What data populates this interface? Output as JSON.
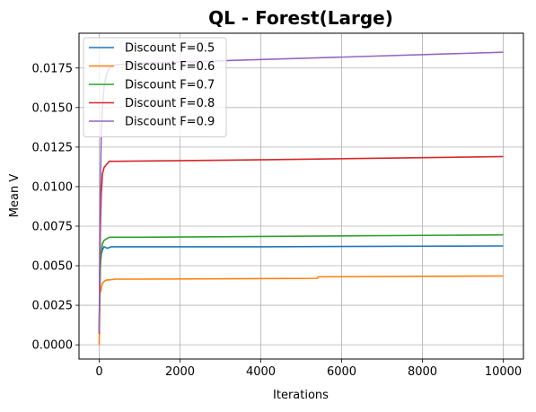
{
  "chart_data": {
    "type": "line",
    "title": "QL - Forest(Large)",
    "xlabel": "Iterations",
    "ylabel": "Mean V",
    "xlim": [
      -500,
      10500
    ],
    "ylim": [
      -0.0009,
      0.0197
    ],
    "xticks": [
      0,
      2000,
      4000,
      6000,
      8000,
      10000
    ],
    "yticks": [
      0.0,
      0.0025,
      0.005,
      0.0075,
      0.01,
      0.0125,
      0.015,
      0.0175
    ],
    "xtick_labels": [
      "0",
      "2000",
      "4000",
      "6000",
      "8000",
      "10000"
    ],
    "ytick_labels": [
      "0.0000",
      "0.0025",
      "0.0050",
      "0.0075",
      "0.0100",
      "0.0125",
      "0.0150",
      "0.0175"
    ],
    "grid": true,
    "legend_position": "top-left",
    "series": [
      {
        "name": "Discount F=0.5",
        "color": "#1f77b4",
        "x": [
          0,
          15,
          30,
          50,
          80,
          120,
          200,
          300,
          500,
          1000,
          4000,
          10000
        ],
        "y": [
          0.0009,
          0.0035,
          0.0052,
          0.0057,
          0.006,
          0.0062,
          0.0061,
          0.0062,
          0.0062,
          0.0062,
          0.0062,
          0.00625
        ]
      },
      {
        "name": "Discount F=0.6",
        "color": "#ff7f0e",
        "x": [
          0,
          10,
          20,
          40,
          60,
          80,
          120,
          180,
          250,
          400,
          1000,
          5400,
          5420,
          10000
        ],
        "y": [
          0.0,
          0.0018,
          0.0033,
          0.0034,
          0.0037,
          0.0039,
          0.004,
          0.0041,
          0.0041,
          0.00415,
          0.00415,
          0.0042,
          0.0043,
          0.00435
        ]
      },
      {
        "name": "Discount F=0.7",
        "color": "#2ca02c",
        "x": [
          0,
          15,
          30,
          50,
          80,
          120,
          180,
          250,
          400,
          1000,
          10000
        ],
        "y": [
          0.0008,
          0.0035,
          0.005,
          0.0058,
          0.0064,
          0.0066,
          0.0067,
          0.0068,
          0.0068,
          0.0068,
          0.00695
        ]
      },
      {
        "name": "Discount F=0.8",
        "color": "#d62728",
        "x": [
          0,
          15,
          30,
          50,
          80,
          120,
          180,
          250,
          400,
          4100,
          4150,
          10000
        ],
        "y": [
          0.0007,
          0.0045,
          0.0075,
          0.0095,
          0.0108,
          0.0112,
          0.0114,
          0.0116,
          0.0116,
          0.0117,
          0.0117,
          0.0119
        ]
      },
      {
        "name": "Discount F=0.9",
        "color": "#9467bd",
        "x": [
          0,
          15,
          30,
          50,
          80,
          120,
          180,
          250,
          400,
          1000,
          10000
        ],
        "y": [
          0.0008,
          0.006,
          0.01,
          0.0132,
          0.015,
          0.0163,
          0.0171,
          0.0175,
          0.0177,
          0.0178,
          0.0185
        ]
      }
    ]
  }
}
